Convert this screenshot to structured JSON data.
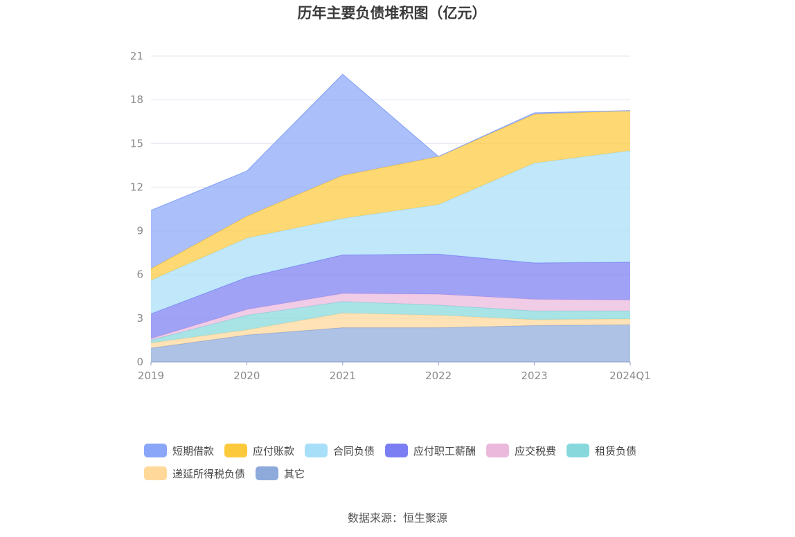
{
  "chart_data": {
    "type": "area",
    "stacked": true,
    "title": "历年主要负债堆积图（亿元）",
    "categories": [
      "2019",
      "2020",
      "2021",
      "2022",
      "2023",
      "2024Q1"
    ],
    "ylim": [
      0,
      21
    ],
    "yticks": [
      "0",
      "3",
      "6",
      "9",
      "12",
      "15",
      "18",
      "21"
    ],
    "grid": true,
    "legend_position": "bottom",
    "series": [
      {
        "name": "其它",
        "color": "#8eaadb",
        "values": [
          0.95,
          1.85,
          2.35,
          2.35,
          2.5,
          2.55
        ]
      },
      {
        "name": "递延所得税负债",
        "color": "#ffd89a",
        "values": [
          0.35,
          0.35,
          1.0,
          0.85,
          0.4,
          0.4
        ]
      },
      {
        "name": "租赁负债",
        "color": "#86d8dc",
        "values": [
          0.2,
          1.0,
          0.8,
          0.7,
          0.6,
          0.55
        ]
      },
      {
        "name": "应交税费",
        "color": "#eab9dc",
        "values": [
          0.1,
          0.4,
          0.55,
          0.75,
          0.8,
          0.75
        ]
      },
      {
        "name": "应付职工薪酬",
        "color": "#7b7ef2",
        "values": [
          1.7,
          2.2,
          2.65,
          2.75,
          2.5,
          2.6
        ]
      },
      {
        "name": "合同负债",
        "color": "#a8dff8",
        "values": [
          2.3,
          2.7,
          2.5,
          3.4,
          6.85,
          7.65
        ]
      },
      {
        "name": "应付账款",
        "color": "#fdc93c",
        "values": [
          0.8,
          1.5,
          2.95,
          3.3,
          3.35,
          2.75
        ]
      },
      {
        "name": "短期借款",
        "color": "#8aa6f8",
        "values": [
          4.0,
          3.1,
          6.95,
          0.0,
          0.1,
          0.0
        ]
      }
    ],
    "legend_order": [
      "短期借款",
      "应付账款",
      "合同负债",
      "应付职工薪酬",
      "应交税费",
      "租赁负债",
      "递延所得税负债",
      "其它"
    ]
  },
  "source_text": "数据来源：恒生聚源"
}
